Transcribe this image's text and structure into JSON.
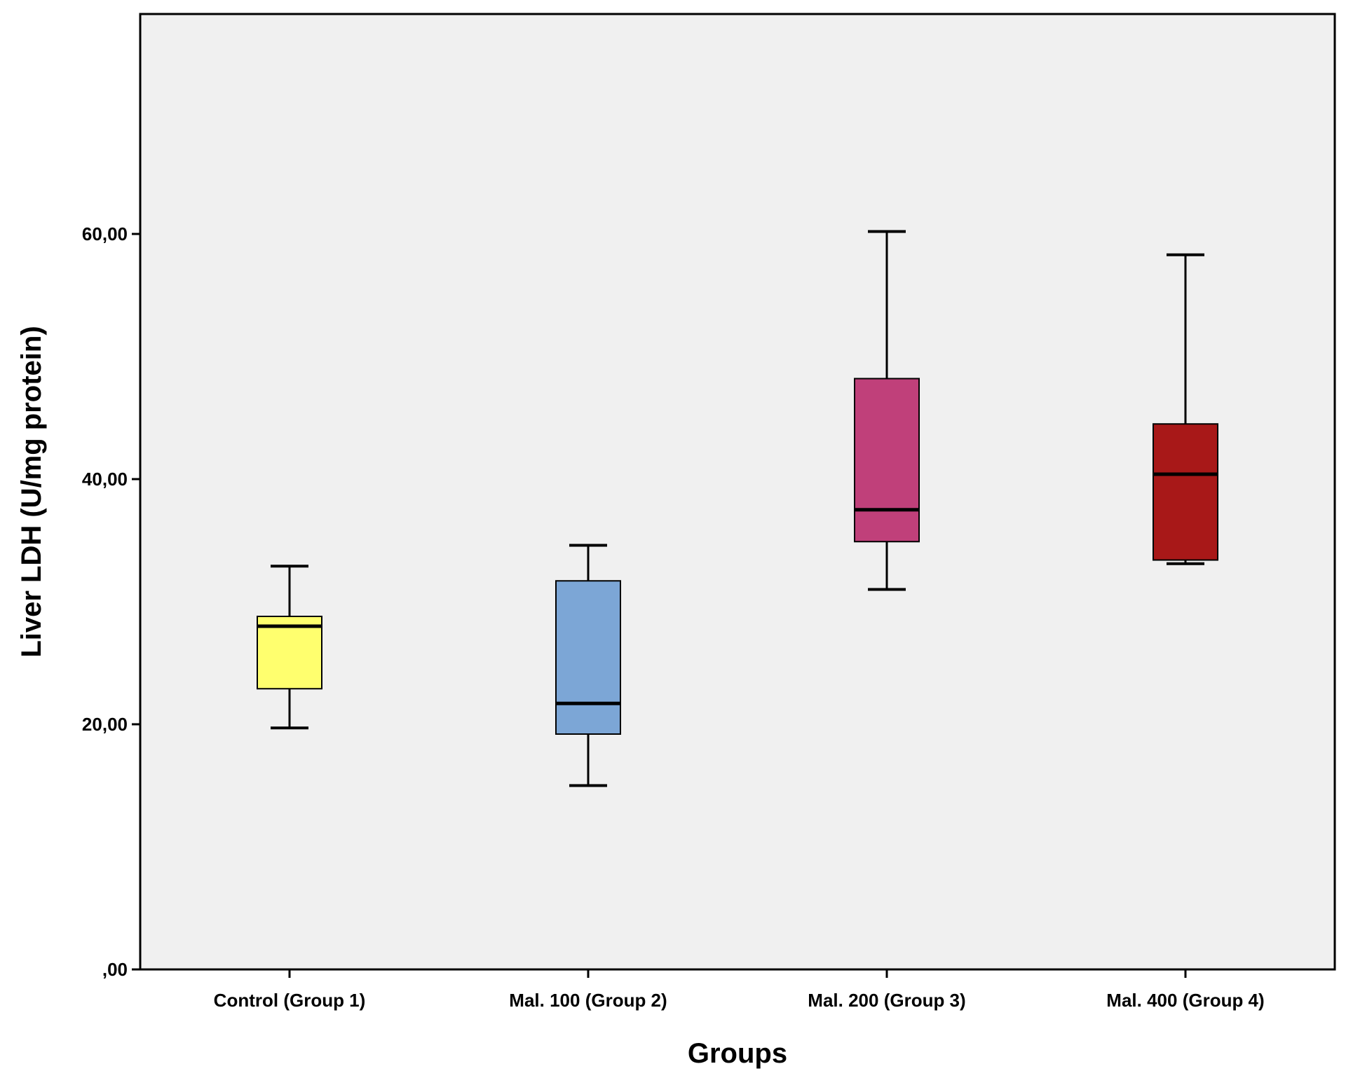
{
  "chart_data": {
    "type": "boxplot",
    "title": "",
    "xlabel": "Groups",
    "ylabel": "Liver LDH (U/mg protein)",
    "ylim": [
      0,
      78
    ],
    "yticks": [
      {
        "value": 0,
        "label": ",00"
      },
      {
        "value": 20,
        "label": "20,00"
      },
      {
        "value": 40,
        "label": "40,00"
      },
      {
        "value": 60,
        "label": "60,00"
      }
    ],
    "categories": [
      "Control (Group 1)",
      "Mal. 100 (Group 2)",
      "Mal. 200 (Group 3)",
      "Mal. 400 (Group 4)"
    ],
    "boxes": [
      {
        "name": "Control (Group 1)",
        "min": 19.7,
        "q1": 22.9,
        "median": 28.0,
        "q3": 28.8,
        "max": 32.9,
        "color": "#ffff6e"
      },
      {
        "name": "Mal. 100 (Group 2)",
        "min": 15.0,
        "q1": 19.2,
        "median": 21.7,
        "q3": 31.7,
        "max": 34.6,
        "color": "#7ca6d6"
      },
      {
        "name": "Mal. 200 (Group 3)",
        "min": 31.0,
        "q1": 34.9,
        "median": 37.5,
        "q3": 48.2,
        "max": 60.2,
        "color": "#c0407a"
      },
      {
        "name": "Mal. 400 (Group 4)",
        "min": 33.1,
        "q1": 33.4,
        "median": 40.4,
        "q3": 44.5,
        "max": 58.3,
        "color": "#a81818"
      }
    ],
    "plot_background": "#f0f0f0",
    "grid": false,
    "legend": "none"
  }
}
